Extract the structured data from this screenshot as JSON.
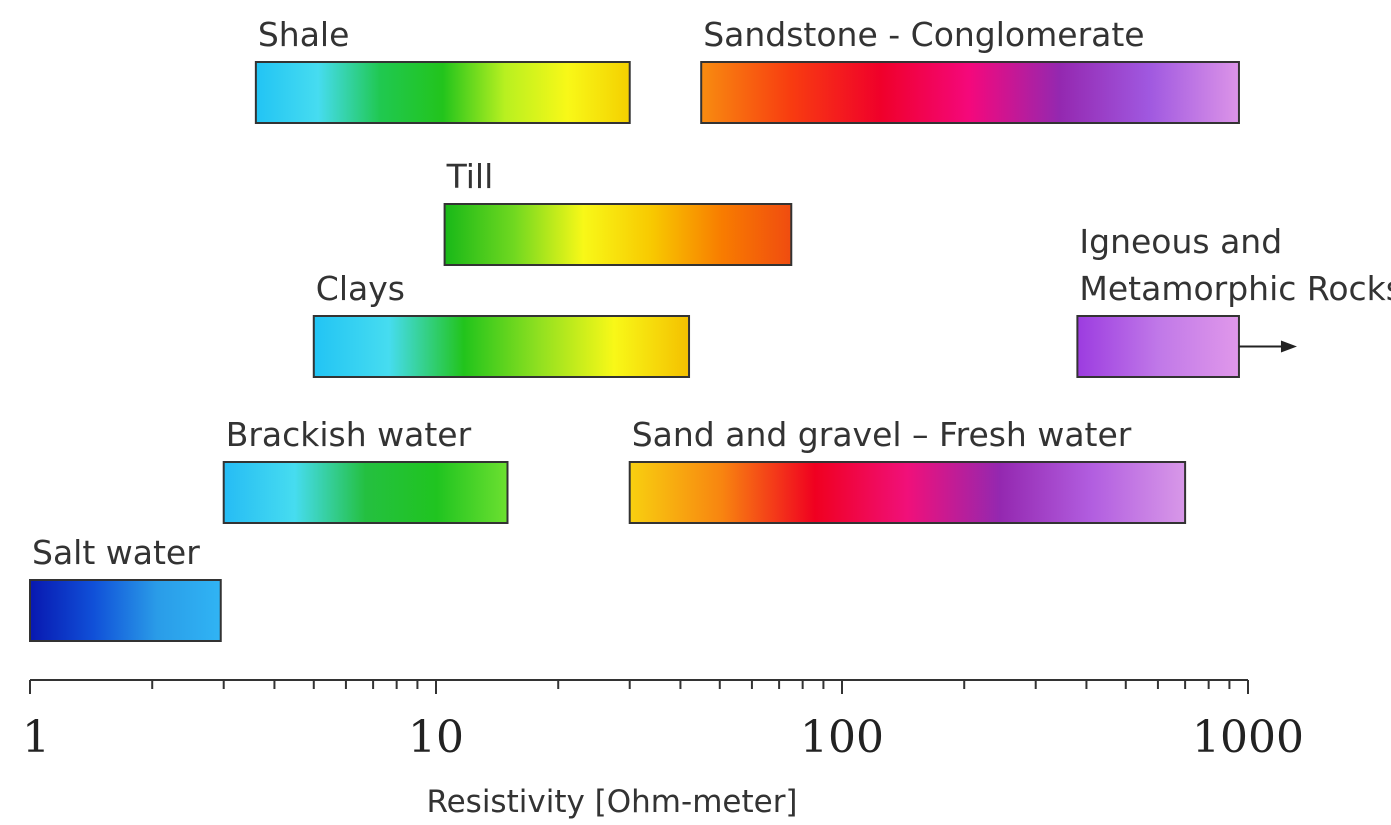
{
  "chart_data": {
    "type": "bar",
    "orientation": "horizontal-range",
    "x_scale": "log",
    "xlim": [
      1,
      1000
    ],
    "xlabel": "Resistivity [Ohm-meter]",
    "x_ticks": [
      {
        "value": 1,
        "label": "1"
      },
      {
        "value": 10,
        "label": "10"
      },
      {
        "value": 100,
        "label": "100"
      },
      {
        "value": 1000,
        "label": "1000"
      }
    ],
    "grid": false,
    "legend": "none",
    "ranges": [
      {
        "id": "shale",
        "label": "Shale",
        "min": 3.6,
        "max": 30,
        "row": 0,
        "colors": [
          "#22c4f4",
          "#46dcf0",
          "#20c850",
          "#22c41c",
          "#b8f020",
          "#f8f818",
          "#f4d000"
        ]
      },
      {
        "id": "sandstone",
        "label": "Sandstone - Conglomerate",
        "min": 45,
        "max": 950,
        "row": 0,
        "colors": [
          "#f88c10",
          "#f83c10",
          "#f0002a",
          "#f4087c",
          "#9428b0",
          "#a058e0",
          "#dc94e8"
        ]
      },
      {
        "id": "till",
        "label": "Till",
        "min": 10.5,
        "max": 75,
        "row": 1,
        "colors": [
          "#18b818",
          "#70d820",
          "#f8f818",
          "#f8c800",
          "#f87c00",
          "#f04c10"
        ]
      },
      {
        "id": "igneous",
        "label": [
          "Igneous and",
          "Metamorphic Rocks"
        ],
        "min": 380,
        "max": 950,
        "row": 2,
        "colors": [
          "#9c3ce0",
          "#c078e8",
          "#e098ea"
        ],
        "arrow_right": true
      },
      {
        "id": "clays",
        "label": "Clays",
        "min": 5,
        "max": 42,
        "row": 2,
        "colors": [
          "#22c4f4",
          "#46dcf0",
          "#22c41c",
          "#90e020",
          "#f8f818",
          "#f4c000"
        ]
      },
      {
        "id": "brackish",
        "label": "Brackish water",
        "min": 3,
        "max": 15,
        "row": 3,
        "colors": [
          "#26bcf4",
          "#46dcf0",
          "#24c040",
          "#20c420",
          "#6ce030"
        ]
      },
      {
        "id": "sand-gravel",
        "label": "Sand and gravel – Fresh water",
        "min": 30,
        "max": 700,
        "row": 3,
        "colors": [
          "#f8d010",
          "#f88410",
          "#f00020",
          "#f0107a",
          "#9428b0",
          "#b25ee0",
          "#d898e8"
        ]
      },
      {
        "id": "salt",
        "label": "Salt water",
        "min": 1,
        "max": 2.95,
        "row": 4,
        "colors": [
          "#0818b0",
          "#1050d8",
          "#2a9ce8",
          "#30b4f4"
        ]
      }
    ]
  }
}
